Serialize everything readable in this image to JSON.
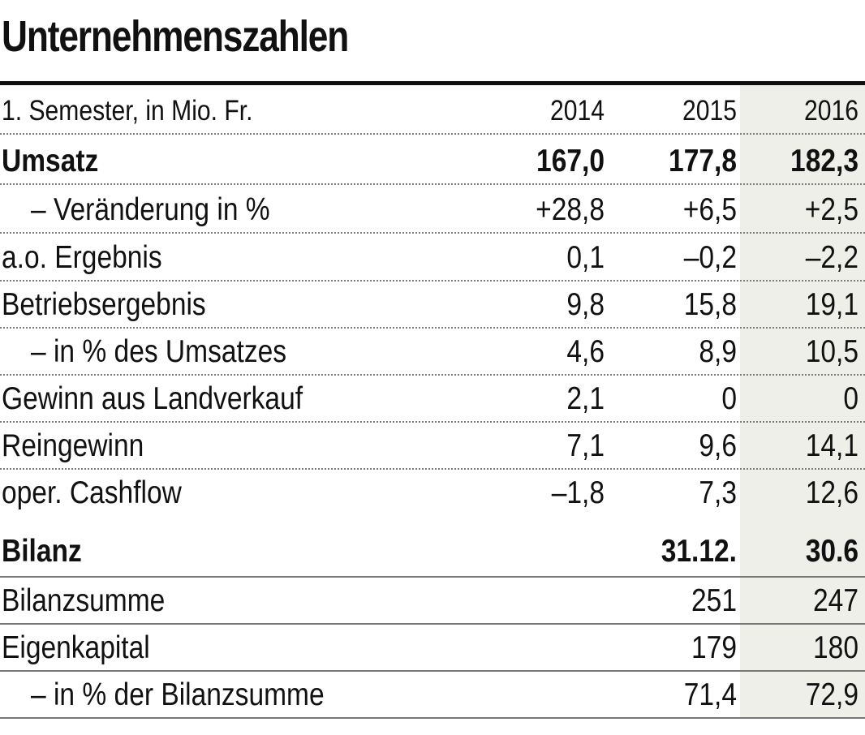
{
  "title": "Unternehmenszahlen",
  "table": {
    "header": {
      "label": "1. Semester, in Mio. Fr.",
      "y2014": "2014",
      "y2015": "2015",
      "y2016": "2016"
    },
    "rows": [
      {
        "label": "Umsatz",
        "v2014": "167,0",
        "v2015": "177,8",
        "v2016": "182,3"
      },
      {
        "label": "– Veränderung in %",
        "v2014": "+28,8",
        "v2015": "+6,5",
        "v2016": "+2,5"
      },
      {
        "label": "a.o. Ergebnis",
        "v2014": "0,1",
        "v2015": "–0,2",
        "v2016": "–2,2"
      },
      {
        "label": "Betriebsergebnis",
        "v2014": "9,8",
        "v2015": "15,8",
        "v2016": "19,1"
      },
      {
        "label": "– in % des Umsatzes",
        "v2014": "4,6",
        "v2015": "8,9",
        "v2016": "10,5"
      },
      {
        "label": "Gewinn aus Landverkauf",
        "v2014": "2,1",
        "v2015": "0",
        "v2016": "0"
      },
      {
        "label": "Reingewinn",
        "v2014": "7,1",
        "v2015": "9,6",
        "v2016": "14,1"
      },
      {
        "label": "oper. Cashflow",
        "v2014": "–1,8",
        "v2015": "7,3",
        "v2016": "12,6"
      }
    ]
  },
  "balance": {
    "header": {
      "label": "Bilanz",
      "date2015": "31.12.",
      "date2016": "30.6"
    },
    "rows": [
      {
        "label": "Bilanzsumme",
        "v2015": "251",
        "v2016": "247"
      },
      {
        "label": "Eigenkapital",
        "v2015": "179",
        "v2016": "180"
      },
      {
        "label": "– in % der Bilanzsumme",
        "v2015": "71,4",
        "v2016": "72,9"
      }
    ]
  }
}
